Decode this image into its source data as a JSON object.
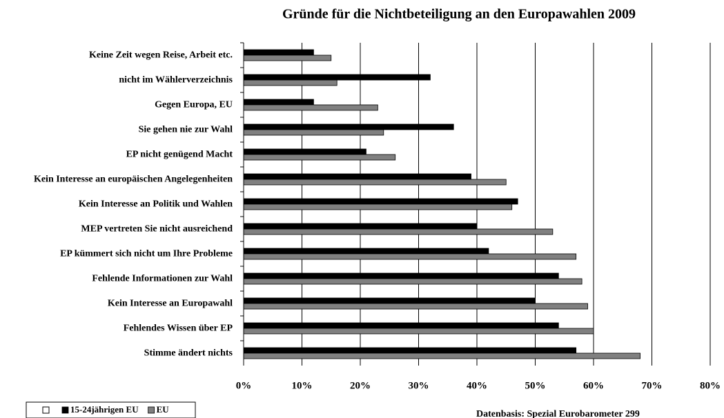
{
  "chart_data": {
    "type": "bar",
    "orientation": "horizontal",
    "title": "Gründe für die Nichtbeteiligung an den Europawahlen 2009",
    "categories": [
      "Keine Zeit wegen Reise, Arbeit etc.",
      "nicht im Wählerverzeichnis",
      "Gegen Europa, EU",
      "Sie gehen nie zur Wahl",
      "EP nicht genügend Macht",
      "Kein Interesse an europäischen Angelegenheiten",
      "Kein Interesse an Politik und Wahlen",
      "MEP vertreten Sie nicht ausreichend",
      "EP kümmert sich nicht um Ihre Probleme",
      "Fehlende Informationen zur Wahl",
      "Kein Interesse an Europawahl",
      "Fehlendes Wissen über EP",
      "Stimme ändert nichts"
    ],
    "series": [
      {
        "name": "15-24jährigen EU",
        "color": "#000000",
        "values": [
          12,
          32,
          12,
          36,
          21,
          39,
          47,
          40,
          42,
          54,
          50,
          54,
          57
        ]
      },
      {
        "name": "EU",
        "color": "#808080",
        "values": [
          15,
          16,
          23,
          24,
          26,
          45,
          46,
          53,
          57,
          58,
          59,
          60,
          68
        ]
      }
    ],
    "xlim": [
      0,
      80
    ],
    "xticks": [
      {
        "value": 0,
        "label": "0%"
      },
      {
        "value": 10,
        "label": "10%"
      },
      {
        "value": 20,
        "label": "20%"
      },
      {
        "value": 30,
        "label": "30%"
      },
      {
        "value": 40,
        "label": "40%"
      },
      {
        "value": 50,
        "label": "50%"
      },
      {
        "value": 60,
        "label": "60%"
      },
      {
        "value": 70,
        "label": "70%"
      },
      {
        "value": 80,
        "label": "80%"
      }
    ],
    "grid": true,
    "legend": "bottom-left",
    "source": "Datenbasis: Spezial Eurobarometer 299"
  }
}
